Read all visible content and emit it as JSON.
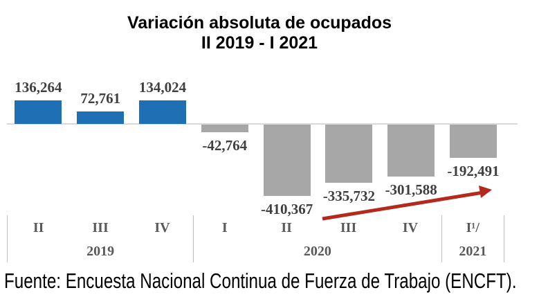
{
  "chart": {
    "title_line1": "Variación absoluta de ocupados",
    "title_line2": "II 2019 - I 2021"
  },
  "chart_data": {
    "type": "bar",
    "title": "Variación absoluta de ocupados",
    "subtitle": "II 2019 - I 2021",
    "xlabel": "",
    "ylabel": "",
    "grid": false,
    "legend": "none",
    "categories": [
      "II 2019",
      "III 2019",
      "IV 2019",
      "I 2020",
      "II 2020",
      "III 2020",
      "IV 2020",
      "I 2021"
    ],
    "values": [
      136264,
      72761,
      134024,
      -42764,
      -410367,
      -335732,
      -301588,
      -192491
    ],
    "value_labels": [
      "136,264",
      "72,761",
      "134,024",
      "-42,764",
      "-410,367",
      "-335,732",
      "-301,588",
      "-192,491"
    ],
    "x_axis_groups": [
      {
        "year": "2019",
        "quarters": [
          "II",
          "III",
          "IV"
        ]
      },
      {
        "year": "2020",
        "quarters": [
          "I",
          "II",
          "III",
          "IV"
        ]
      },
      {
        "year": "2021",
        "quarters": [
          "I¹/"
        ]
      }
    ],
    "annotations": {
      "trend_arrow": {
        "description": "upward red arrow from II 2020 toward I 2021"
      }
    },
    "colors": {
      "positive_bar": "#1F6FB5",
      "negative_bar": "#A7A7A7",
      "trend_arrow": "#B5291C",
      "axis_line": "#D9D9D9",
      "value_label": "#3F3F3F",
      "axis_text": "#595959"
    }
  },
  "source": "Fuente: Encuesta Nacional Continua de Fuerza de Trabajo (ENCFT)."
}
